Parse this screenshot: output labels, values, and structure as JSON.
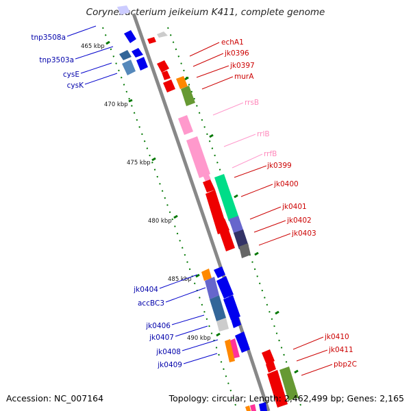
{
  "title": "Corynebacterium jeikeium K411, complete genome",
  "footer": {
    "accession": "Accession: NC_007164",
    "summary": "Topology: circular; Length: 2,462,499 bp; Genes: 2,165"
  },
  "colors": {
    "backbone": "#888888",
    "cds_forward": "#ee0000",
    "cds_reverse": "#0000ee",
    "rrna": "#ff99cc",
    "ticks": "#007700",
    "label_right": "#cc0000",
    "label_left": "#0000aa"
  },
  "kbp_ticks": [
    "465 kbp",
    "470 kbp",
    "475 kbp",
    "480 kbp",
    "485 kbp",
    "490 kbp"
  ],
  "labels_left": [
    "tnp3508a",
    "tnp3503a",
    "cysE",
    "cysK",
    "jk0404",
    "accBC3",
    "jk0406",
    "jk0407",
    "jk0408",
    "jk0409"
  ],
  "labels_right": [
    "echA1",
    "jk0396",
    "jk0397",
    "murA",
    "rrsB",
    "rrlB",
    "rrfB",
    "jk0399",
    "jk0400",
    "jk0401",
    "jk0402",
    "jk0403",
    "jk0410",
    "jk0411",
    "pbp2C"
  ]
}
